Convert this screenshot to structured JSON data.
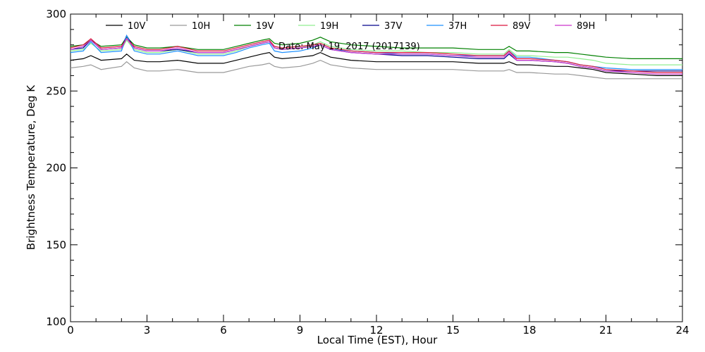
{
  "chart_data": {
    "type": "line",
    "title": "",
    "annotation": "Date: May 19, 2017 (2017139)",
    "xlabel": "Local Time (EST), Hour",
    "ylabel": "Brightness Temperature, Deg K",
    "xlim": [
      0,
      24
    ],
    "ylim": [
      100,
      300
    ],
    "x_ticks": [
      0,
      3,
      6,
      9,
      12,
      15,
      18,
      21,
      24
    ],
    "y_ticks": [
      100,
      150,
      200,
      250,
      300
    ],
    "x_tick_labels": [
      "0",
      "3",
      "6",
      "9",
      "12",
      "15",
      "18",
      "21",
      "24"
    ],
    "y_tick_labels": [
      "100",
      "150",
      "200",
      "250",
      "300"
    ],
    "grid": false,
    "legend_position": "top",
    "x": [
      0,
      0.5,
      0.8,
      1.2,
      2,
      2.2,
      2.5,
      3,
      3.5,
      4.2,
      5,
      6,
      6.5,
      7,
      7.5,
      7.8,
      8,
      8.3,
      9,
      9.5,
      9.8,
      10.2,
      11,
      12,
      13,
      14,
      15,
      16,
      17,
      17.2,
      17.5,
      18,
      19,
      19.5,
      20,
      20.5,
      21,
      22,
      23,
      24
    ],
    "series": [
      {
        "name": "10V",
        "color": "#000000",
        "values": [
          270,
          271,
          273,
          270,
          271,
          274,
          270,
          269,
          269,
          270,
          268,
          268,
          270,
          272,
          274,
          275,
          272,
          271,
          272,
          273,
          275,
          272,
          270,
          269,
          269,
          269,
          269,
          268,
          268,
          269,
          267,
          267,
          266,
          266,
          265,
          264,
          262,
          261,
          260,
          260
        ]
      },
      {
        "name": "10H",
        "color": "#999999",
        "values": [
          265,
          266,
          267,
          264,
          266,
          269,
          265,
          263,
          263,
          264,
          262,
          262,
          264,
          266,
          267,
          268,
          266,
          265,
          266,
          268,
          270,
          267,
          265,
          264,
          264,
          264,
          264,
          263,
          263,
          264,
          262,
          262,
          261,
          261,
          260,
          259,
          258,
          258,
          258,
          258
        ]
      },
      {
        "name": "19V",
        "color": "#008000",
        "values": [
          279,
          280,
          283,
          279,
          280,
          285,
          280,
          278,
          278,
          279,
          277,
          277,
          279,
          281,
          283,
          284,
          281,
          280,
          281,
          283,
          285,
          282,
          280,
          279,
          278,
          278,
          278,
          277,
          277,
          279,
          276,
          276,
          275,
          275,
          274,
          273,
          272,
          271,
          271,
          271
        ]
      },
      {
        "name": "19H",
        "color": "#90ee90",
        "values": [
          276,
          277,
          281,
          276,
          277,
          283,
          277,
          275,
          275,
          277,
          274,
          274,
          276,
          279,
          281,
          282,
          278,
          277,
          278,
          280,
          282,
          279,
          277,
          276,
          276,
          275,
          275,
          274,
          274,
          277,
          273,
          273,
          272,
          272,
          271,
          270,
          268,
          267,
          267,
          267
        ]
      },
      {
        "name": "37V",
        "color": "#00008b",
        "values": [
          277,
          278,
          283,
          277,
          278,
          286,
          278,
          276,
          276,
          277,
          275,
          275,
          277,
          279,
          281,
          282,
          278,
          277,
          278,
          279,
          280,
          277,
          275,
          274,
          273,
          273,
          272,
          271,
          271,
          274,
          270,
          270,
          269,
          268,
          266,
          265,
          263,
          263,
          263,
          263
        ]
      },
      {
        "name": "37H",
        "color": "#1e90ff",
        "values": [
          275,
          276,
          282,
          275,
          276,
          286,
          276,
          274,
          274,
          276,
          273,
          273,
          275,
          278,
          280,
          281,
          276,
          275,
          276,
          278,
          280,
          277,
          276,
          275,
          274,
          274,
          273,
          273,
          273,
          276,
          272,
          272,
          270,
          269,
          267,
          266,
          265,
          264,
          264,
          264
        ]
      },
      {
        "name": "89V",
        "color": "#dc143c",
        "values": [
          278,
          280,
          284,
          278,
          279,
          284,
          279,
          277,
          277,
          279,
          276,
          276,
          278,
          280,
          282,
          283,
          279,
          278,
          279,
          280,
          281,
          278,
          276,
          275,
          275,
          275,
          274,
          273,
          273,
          276,
          271,
          271,
          270,
          269,
          267,
          266,
          264,
          263,
          262,
          262
        ]
      },
      {
        "name": "89H",
        "color": "#cc33cc",
        "values": [
          277,
          279,
          283,
          277,
          278,
          284,
          278,
          276,
          276,
          278,
          275,
          275,
          277,
          279,
          281,
          282,
          278,
          277,
          278,
          279,
          280,
          277,
          275,
          274,
          274,
          274,
          273,
          272,
          272,
          275,
          270,
          270,
          269,
          268,
          266,
          265,
          263,
          262,
          261,
          261
        ]
      }
    ]
  }
}
